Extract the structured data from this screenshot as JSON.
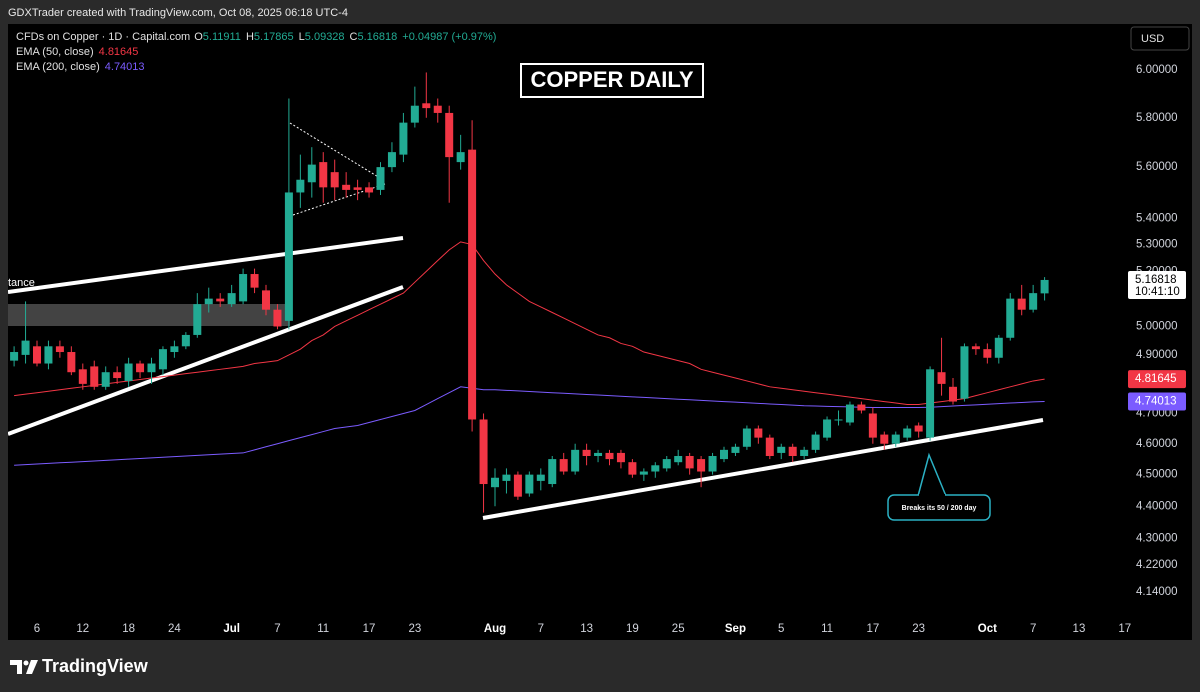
{
  "header": {
    "credit": "GDXTrader created with TradingView.com, Oct 08, 2025 06:18 UTC-4"
  },
  "legend": {
    "symbol": "CFDs on Copper · 1D · Capital.com",
    "o_label": "O",
    "o": "5.11911",
    "h_label": "H",
    "h": "5.17865",
    "l_label": "L",
    "l": "5.09328",
    "c_label": "C",
    "c": "5.16818",
    "change": "+0.04987 (+0.97%)"
  },
  "currency": "USD",
  "footer": {
    "brand": "TradingView"
  },
  "chart_data": {
    "type": "candlestick",
    "title": "COPPER DAILY",
    "categories": [
      null,
      null,
      "6",
      null,
      null,
      null,
      "12",
      null,
      null,
      null,
      "18",
      null,
      null,
      null,
      "24",
      null,
      null,
      null,
      null,
      "Jul",
      null,
      null,
      null,
      "7",
      null,
      null,
      null,
      "11",
      null,
      null,
      null,
      "17",
      null,
      null,
      null,
      "23",
      null,
      null,
      null,
      null,
      null,
      null,
      "Aug",
      null,
      null,
      null,
      "7",
      null,
      null,
      null,
      "13",
      null,
      null,
      null,
      "19",
      null,
      null,
      null,
      "25",
      null,
      null,
      null,
      null,
      "Sep",
      null,
      null,
      null,
      "5",
      null,
      null,
      null,
      "11",
      null,
      null,
      null,
      "17",
      null,
      null,
      null,
      "23",
      null,
      null,
      null,
      null,
      null,
      "Oct",
      null,
      null,
      null,
      "7",
      null,
      null,
      null,
      "13",
      null,
      null,
      null,
      "17"
    ],
    "open": [
      4.88,
      4.9,
      4.93,
      4.87,
      4.93,
      4.91,
      4.85,
      4.86,
      4.79,
      4.84,
      4.81,
      4.87,
      4.84,
      4.85,
      4.91,
      4.93,
      4.97,
      5.08,
      5.1,
      5.08,
      5.09,
      5.19,
      5.13,
      5.06,
      5.02,
      5.5,
      5.54,
      5.62,
      5.58,
      5.53,
      5.52,
      5.52,
      5.51,
      5.6,
      5.65,
      5.78,
      5.86,
      5.85,
      5.82,
      5.62,
      5.67,
      4.68,
      4.46,
      4.48,
      4.5,
      4.44,
      4.48,
      4.47,
      4.55,
      4.51,
      4.58,
      4.56,
      4.57,
      4.57,
      4.54,
      4.5,
      4.51,
      4.52,
      4.54,
      4.56,
      4.55,
      4.51,
      4.55,
      4.57,
      4.59,
      4.65,
      4.62,
      4.57,
      4.59,
      4.56,
      4.58,
      4.62,
      4.68,
      4.67,
      4.73,
      4.7,
      4.63,
      4.6,
      4.62,
      4.66,
      4.62,
      4.84,
      4.79,
      4.75,
      4.93,
      4.92,
      4.89,
      4.96,
      5.1,
      5.06,
      5.11911,
      null,
      null,
      null,
      null,
      null,
      null,
      null
    ],
    "high": [
      4.93,
      5.09,
      4.95,
      4.95,
      4.95,
      4.93,
      4.87,
      4.88,
      4.86,
      4.86,
      4.89,
      4.88,
      4.89,
      4.93,
      4.95,
      4.98,
      5.12,
      5.14,
      5.12,
      5.15,
      5.21,
      5.21,
      5.15,
      5.08,
      5.88,
      5.65,
      5.68,
      5.66,
      5.63,
      5.58,
      5.55,
      5.54,
      5.62,
      5.7,
      5.82,
      5.93,
      5.99,
      5.88,
      5.85,
      5.73,
      5.79,
      4.7,
      4.52,
      4.52,
      4.51,
      4.51,
      4.52,
      4.56,
      4.57,
      4.6,
      4.6,
      4.58,
      4.58,
      4.58,
      4.55,
      4.52,
      4.54,
      4.56,
      4.58,
      4.57,
      4.56,
      4.57,
      4.59,
      4.6,
      4.66,
      4.66,
      4.63,
      4.6,
      4.6,
      4.59,
      4.64,
      4.69,
      4.71,
      4.74,
      4.74,
      4.72,
      4.64,
      4.64,
      4.66,
      4.67,
      4.86,
      4.96,
      4.82,
      4.94,
      4.94,
      4.94,
      4.97,
      5.12,
      5.15,
      5.15,
      5.17865,
      null,
      null,
      null,
      null,
      null,
      null,
      null
    ],
    "low": [
      4.86,
      4.87,
      4.86,
      4.85,
      4.89,
      4.83,
      4.78,
      4.78,
      4.78,
      4.8,
      4.79,
      4.82,
      4.8,
      4.83,
      4.89,
      4.92,
      4.96,
      5.05,
      5.07,
      5.07,
      5.08,
      5.12,
      5.04,
      4.99,
      4.99,
      5.44,
      5.48,
      5.46,
      5.47,
      5.48,
      5.47,
      5.48,
      5.49,
      5.58,
      5.62,
      5.76,
      5.8,
      5.78,
      5.46,
      5.59,
      4.64,
      4.38,
      4.4,
      4.44,
      4.42,
      4.43,
      4.45,
      4.46,
      4.5,
      4.5,
      4.53,
      4.54,
      4.53,
      4.52,
      4.49,
      4.48,
      4.49,
      4.51,
      4.53,
      4.5,
      4.46,
      4.5,
      4.54,
      4.56,
      4.58,
      4.6,
      4.55,
      4.55,
      4.54,
      4.55,
      4.57,
      4.61,
      4.66,
      4.66,
      4.7,
      4.6,
      4.58,
      4.59,
      4.61,
      4.62,
      4.61,
      4.76,
      4.73,
      4.74,
      4.9,
      4.87,
      4.87,
      4.95,
      5.04,
      5.05,
      5.09328,
      null,
      null,
      null,
      null,
      null,
      null,
      null
    ],
    "close": [
      4.91,
      4.95,
      4.87,
      4.93,
      4.91,
      4.84,
      4.8,
      4.79,
      4.84,
      4.82,
      4.87,
      4.84,
      4.87,
      4.92,
      4.93,
      4.97,
      5.08,
      5.1,
      5.09,
      5.12,
      5.19,
      5.14,
      5.06,
      5.0,
      5.5,
      5.55,
      5.61,
      5.52,
      5.52,
      5.51,
      5.51,
      5.5,
      5.6,
      5.66,
      5.78,
      5.85,
      5.84,
      5.82,
      5.64,
      5.66,
      4.68,
      4.47,
      4.49,
      4.5,
      4.43,
      4.5,
      4.5,
      4.55,
      4.51,
      4.58,
      4.56,
      4.57,
      4.55,
      4.54,
      4.5,
      4.51,
      4.53,
      4.55,
      4.56,
      4.52,
      4.51,
      4.56,
      4.58,
      4.59,
      4.65,
      4.62,
      4.56,
      4.59,
      4.56,
      4.58,
      4.63,
      4.68,
      4.68,
      4.73,
      4.71,
      4.62,
      4.6,
      4.63,
      4.65,
      4.64,
      4.85,
      4.8,
      4.74,
      4.93,
      4.92,
      4.89,
      4.96,
      5.1,
      5.06,
      5.12,
      5.16818,
      null,
      null,
      null,
      null,
      null,
      null,
      null
    ],
    "up_color": "#22ab94",
    "down_color": "#f23645",
    "last_price_label": "5.16818",
    "countdown": "10:41:10",
    "series": [
      {
        "name": "EMA (50, close)",
        "color": "#f23645",
        "last_label": "4.81645",
        "values": [
          4.76,
          4.765,
          4.77,
          4.775,
          4.78,
          4.785,
          4.79,
          4.795,
          4.8,
          4.805,
          4.81,
          4.815,
          4.82,
          4.825,
          4.83,
          4.835,
          4.84,
          4.845,
          4.85,
          4.855,
          4.86,
          4.87,
          4.875,
          4.88,
          4.9,
          4.92,
          4.95,
          4.97,
          5.0,
          5.02,
          5.04,
          5.06,
          5.08,
          5.1,
          5.12,
          5.16,
          5.2,
          5.24,
          5.28,
          5.31,
          5.3,
          5.24,
          5.19,
          5.15,
          5.12,
          5.09,
          5.07,
          5.05,
          5.03,
          5.01,
          4.99,
          4.97,
          4.96,
          4.94,
          4.93,
          4.91,
          4.9,
          4.89,
          4.88,
          4.87,
          4.85,
          4.84,
          4.83,
          4.82,
          4.81,
          4.8,
          4.79,
          4.785,
          4.78,
          4.775,
          4.77,
          4.765,
          4.76,
          4.755,
          4.75,
          4.745,
          4.74,
          4.735,
          4.73,
          4.73,
          4.735,
          4.74,
          4.745,
          4.75,
          4.76,
          4.77,
          4.78,
          4.79,
          4.8,
          4.81,
          4.81645,
          null,
          null,
          null,
          null,
          null,
          null,
          null
        ]
      },
      {
        "name": "EMA (200, close)",
        "color": "#7b5cff",
        "last_label": "4.74013",
        "values": [
          4.53,
          4.532,
          4.534,
          4.536,
          4.538,
          4.54,
          4.542,
          4.544,
          4.546,
          4.548,
          4.55,
          4.552,
          4.554,
          4.556,
          4.558,
          4.56,
          4.562,
          4.564,
          4.566,
          4.568,
          4.57,
          4.58,
          4.59,
          4.6,
          4.61,
          4.62,
          4.63,
          4.64,
          4.65,
          4.655,
          4.66,
          4.67,
          4.68,
          4.69,
          4.7,
          4.71,
          4.73,
          4.75,
          4.77,
          4.79,
          4.785,
          4.78,
          4.78,
          4.778,
          4.776,
          4.774,
          4.772,
          4.77,
          4.768,
          4.766,
          4.764,
          4.762,
          4.76,
          4.758,
          4.756,
          4.754,
          4.752,
          4.75,
          4.748,
          4.746,
          4.744,
          4.742,
          4.74,
          4.738,
          4.736,
          4.734,
          4.732,
          4.73,
          4.728,
          4.726,
          4.725,
          4.724,
          4.723,
          4.722,
          4.721,
          4.72,
          4.72,
          4.72,
          4.72,
          4.72,
          4.721,
          4.723,
          4.725,
          4.727,
          4.729,
          4.731,
          4.733,
          4.735,
          4.737,
          4.739,
          4.74013,
          null,
          null,
          null,
          null,
          null,
          null,
          null
        ]
      }
    ],
    "log_scale": true,
    "grid": false,
    "ylim": [
      4.035,
      6.2
    ],
    "yticks": [
      {
        "value": 6,
        "label": "6.00000"
      },
      {
        "value": 5.8,
        "label": "5.80000"
      },
      {
        "value": 5.6,
        "label": "5.60000"
      },
      {
        "value": 5.4,
        "label": "5.40000"
      },
      {
        "value": 5.3,
        "label": "5.30000"
      },
      {
        "value": 5.2,
        "label": "5.20000"
      },
      {
        "value": 5,
        "label": "5.00000"
      },
      {
        "value": 4.9,
        "label": "4.90000"
      },
      {
        "value": 4.7,
        "label": "4.70000"
      },
      {
        "value": 4.6,
        "label": "4.60000"
      },
      {
        "value": 4.5,
        "label": "4.50000"
      },
      {
        "value": 4.4,
        "label": "4.40000"
      },
      {
        "value": 4.3,
        "label": "4.30000"
      },
      {
        "value": 4.22,
        "label": "4.22000"
      },
      {
        "value": 4.14,
        "label": "4.14000"
      }
    ],
    "annotations": [
      "Breaks its 50 / 200 day",
      "tance"
    ]
  }
}
